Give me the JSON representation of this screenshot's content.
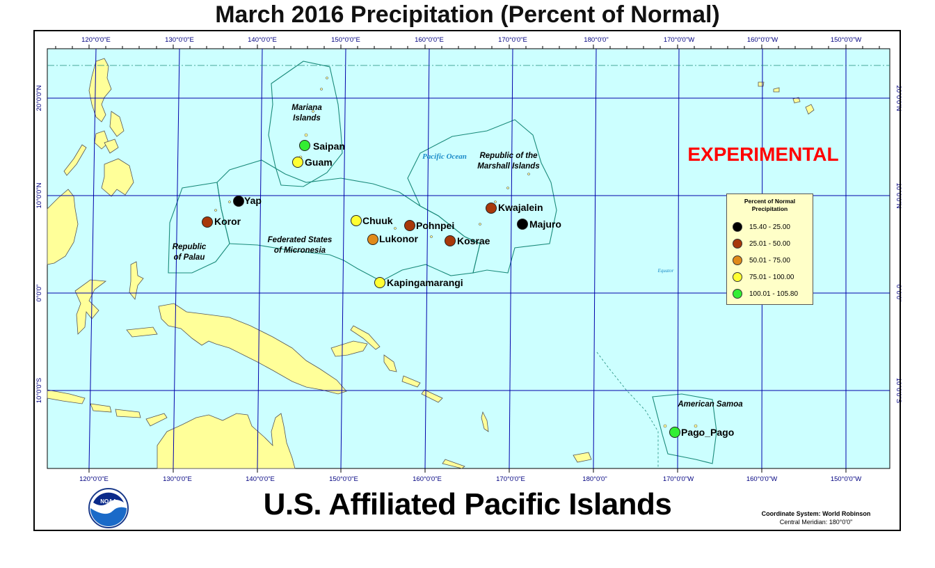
{
  "title": "March 2016 Precipitation (Percent of Normal)",
  "subtitle": "U.S. Affiliated Pacific Islands",
  "watermark": "EXPERIMENTAL",
  "coordinate_system": {
    "line1": "Coordinate System: World Robinson",
    "line2": "Central Meridian: 180°0'0\""
  },
  "lon_labels": [
    "120°0'0\"E",
    "130°0'0\"E",
    "140°0'0\"E",
    "150°0'0\"E",
    "160°0'0\"E",
    "170°0'0\"E",
    "180°0'0\"",
    "170°0'0\"W",
    "160°0'0\"W",
    "150°0'0\"W"
  ],
  "lat_labels": [
    "20°0'0\"N",
    "10°0'0\"N",
    "0°0'0\"",
    "10°0'0\"S"
  ],
  "region_labels": [
    {
      "text": "Mariana Islands",
      "lines": [
        "Mariana",
        "Islands"
      ]
    },
    {
      "text": "Republic of the Marshall Islands",
      "lines": [
        "Republic of the",
        "Marshall Islands"
      ]
    },
    {
      "text": "Federated States of Micronesia",
      "lines": [
        "Federated States",
        "of Micronesia"
      ]
    },
    {
      "text": "Republic of Palau",
      "lines": [
        "Republic",
        "of Palau"
      ]
    },
    {
      "text": "American Samoa",
      "lines": [
        "American Samoa"
      ]
    }
  ],
  "ocean_labels": {
    "pacific": "Pacific Ocean",
    "equator": "Equator"
  },
  "legend": {
    "title_lines": [
      "Percent of Normal",
      "Precipitation"
    ],
    "classes": [
      {
        "label": "15.40 - 25.00",
        "color": "#000000"
      },
      {
        "label": "25.01 - 50.00",
        "color": "#a8380a"
      },
      {
        "label": "50.01 - 75.00",
        "color": "#e08a1a"
      },
      {
        "label": "75.01 - 100.00",
        "color": "#ffff33"
      },
      {
        "label": "100.01 - 105.80",
        "color": "#33ee33"
      }
    ]
  },
  "stations": [
    {
      "name": "Saipan",
      "class": 4
    },
    {
      "name": "Guam",
      "class": 3
    },
    {
      "name": "Yap",
      "class": 0
    },
    {
      "name": "Koror",
      "class": 1
    },
    {
      "name": "Chuuk",
      "class": 3
    },
    {
      "name": "Lukonor",
      "class": 2
    },
    {
      "name": "Pohnpei",
      "class": 1
    },
    {
      "name": "Kosrae",
      "class": 1
    },
    {
      "name": "Kwajalein",
      "class": 1
    },
    {
      "name": "Majuro",
      "class": 0
    },
    {
      "name": "Kapingamarangi",
      "class": 3
    },
    {
      "name": "Pago_Pago",
      "class": 4
    }
  ],
  "colors": {
    "ocean": "#ccffff",
    "land": "#ffff99",
    "graticule": "#0000aa",
    "boundary": "#1a8a7a",
    "watermark": "#ff0000"
  },
  "logo_text": "NOAA"
}
